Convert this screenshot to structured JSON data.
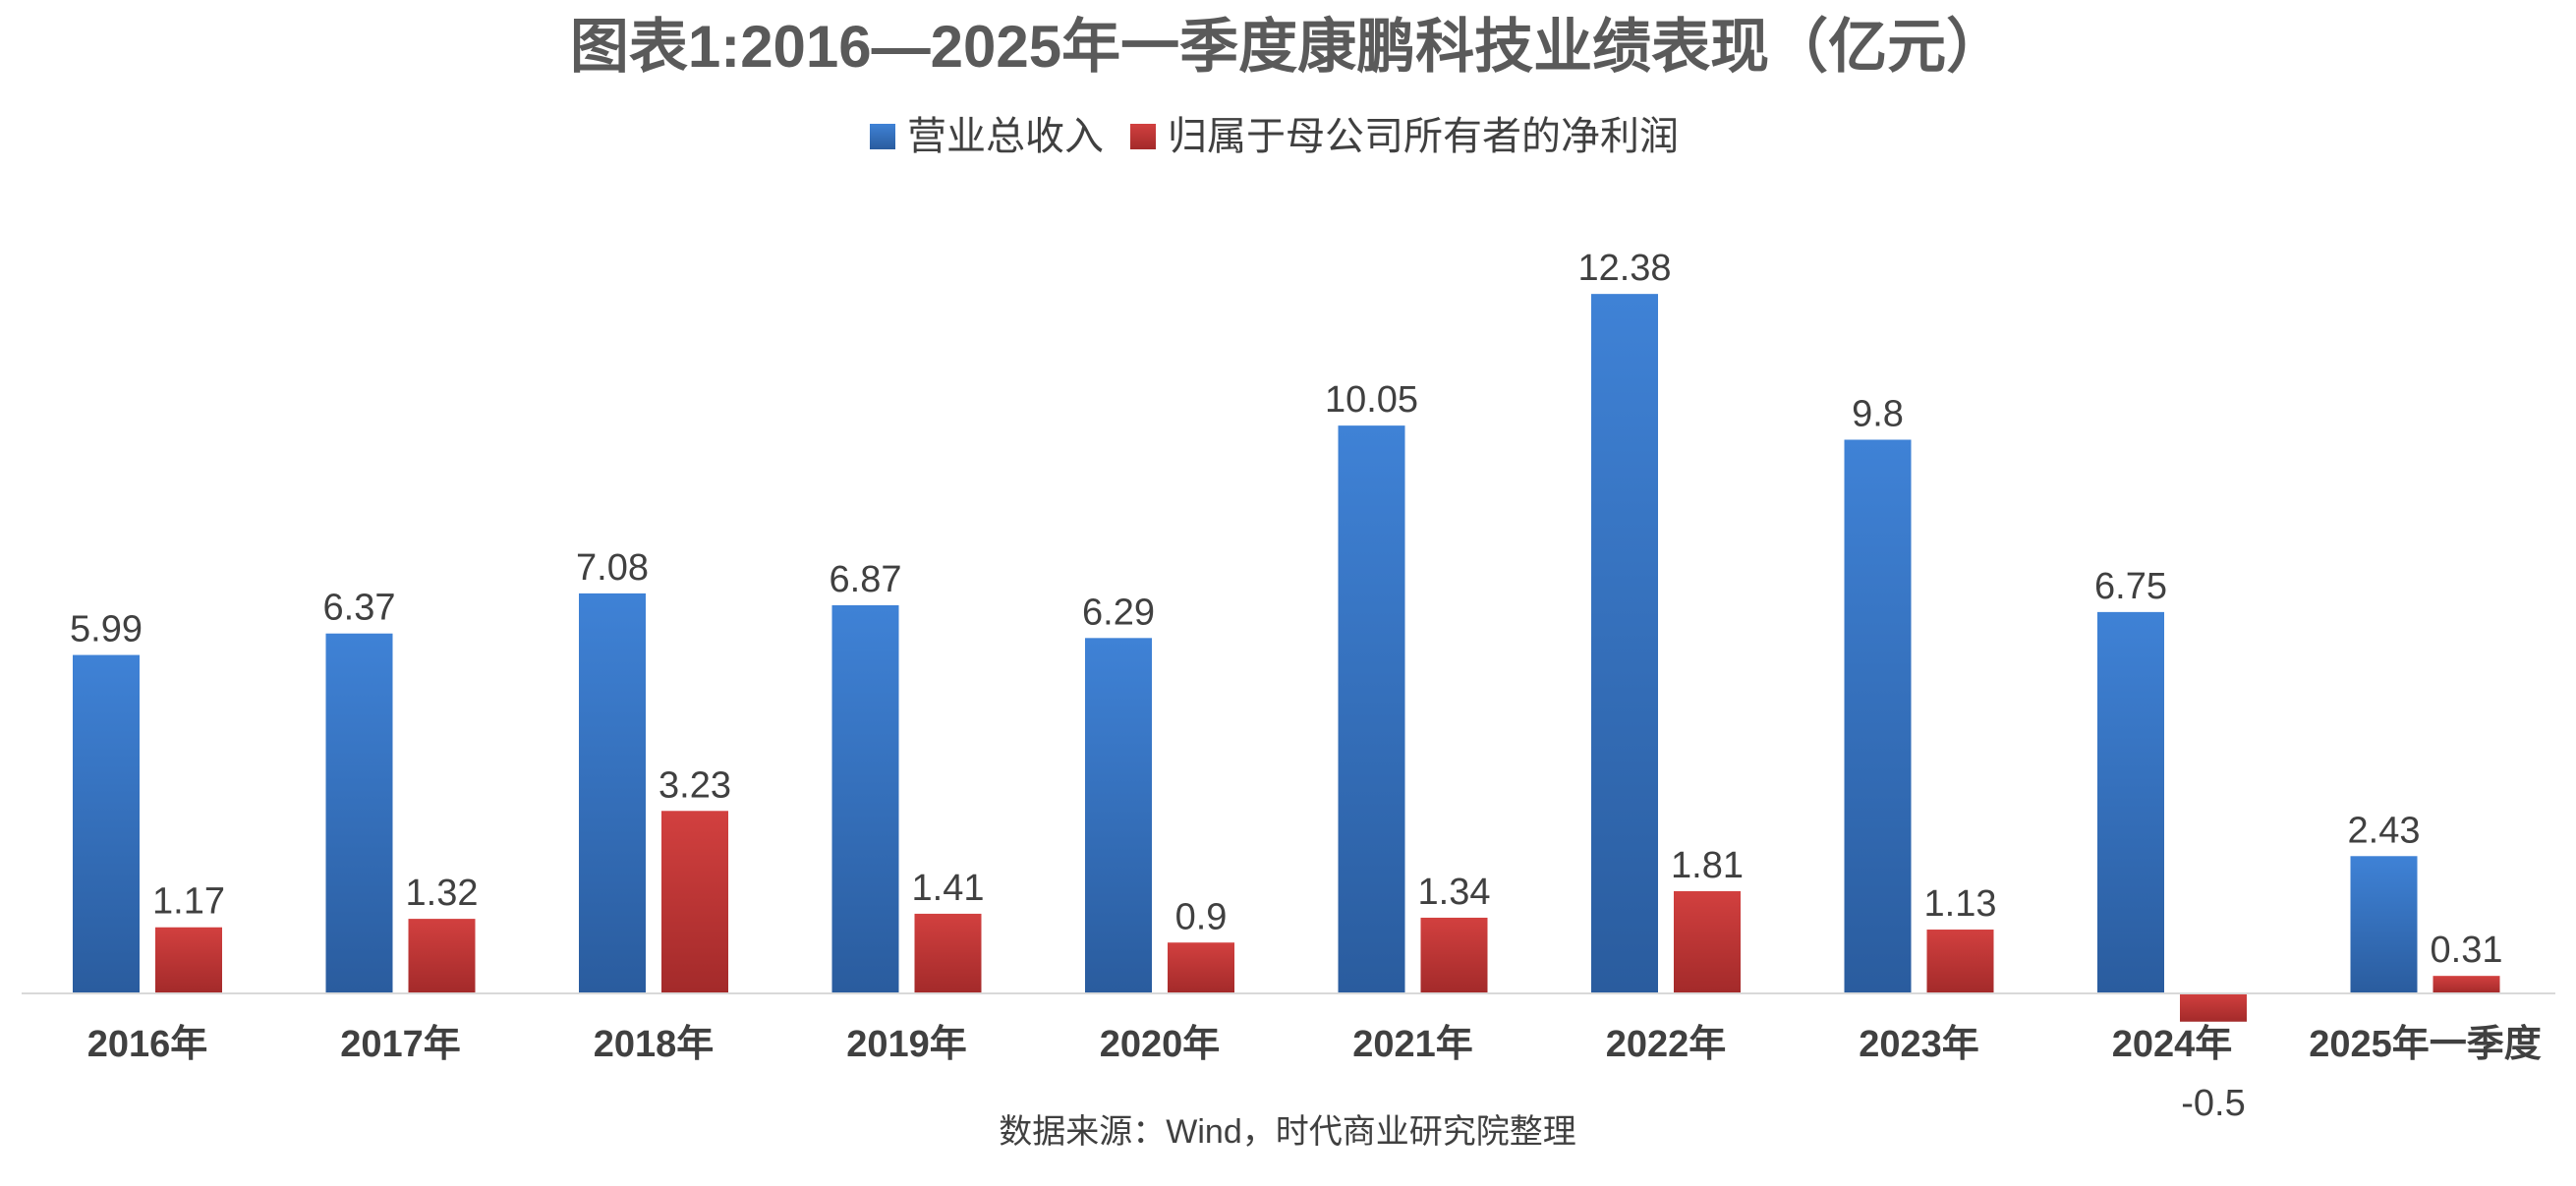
{
  "chart_data": {
    "type": "bar",
    "title": "图表1:2016—2025年一季度康鹏科技业绩表现（亿元）",
    "categories": [
      "2016年",
      "2017年",
      "2018年",
      "2019年",
      "2020年",
      "2021年",
      "2022年",
      "2023年",
      "2024年",
      "2025年一季度"
    ],
    "series": [
      {
        "name": "营业总收入",
        "values": [
          5.99,
          6.37,
          7.08,
          6.87,
          6.29,
          10.05,
          12.38,
          9.8,
          6.75,
          2.43
        ],
        "color": "#3a7ad0"
      },
      {
        "name": "归属于母公司所有者的净利润",
        "values": [
          1.17,
          1.32,
          3.23,
          1.41,
          0.9,
          1.34,
          1.81,
          1.13,
          -0.5,
          0.31
        ],
        "color": "#c8373a"
      }
    ],
    "ylim": [
      -0.6,
      13
    ],
    "grid": false,
    "legend": "top-center",
    "source": "数据来源：Wind，时代商业研究院整理"
  }
}
